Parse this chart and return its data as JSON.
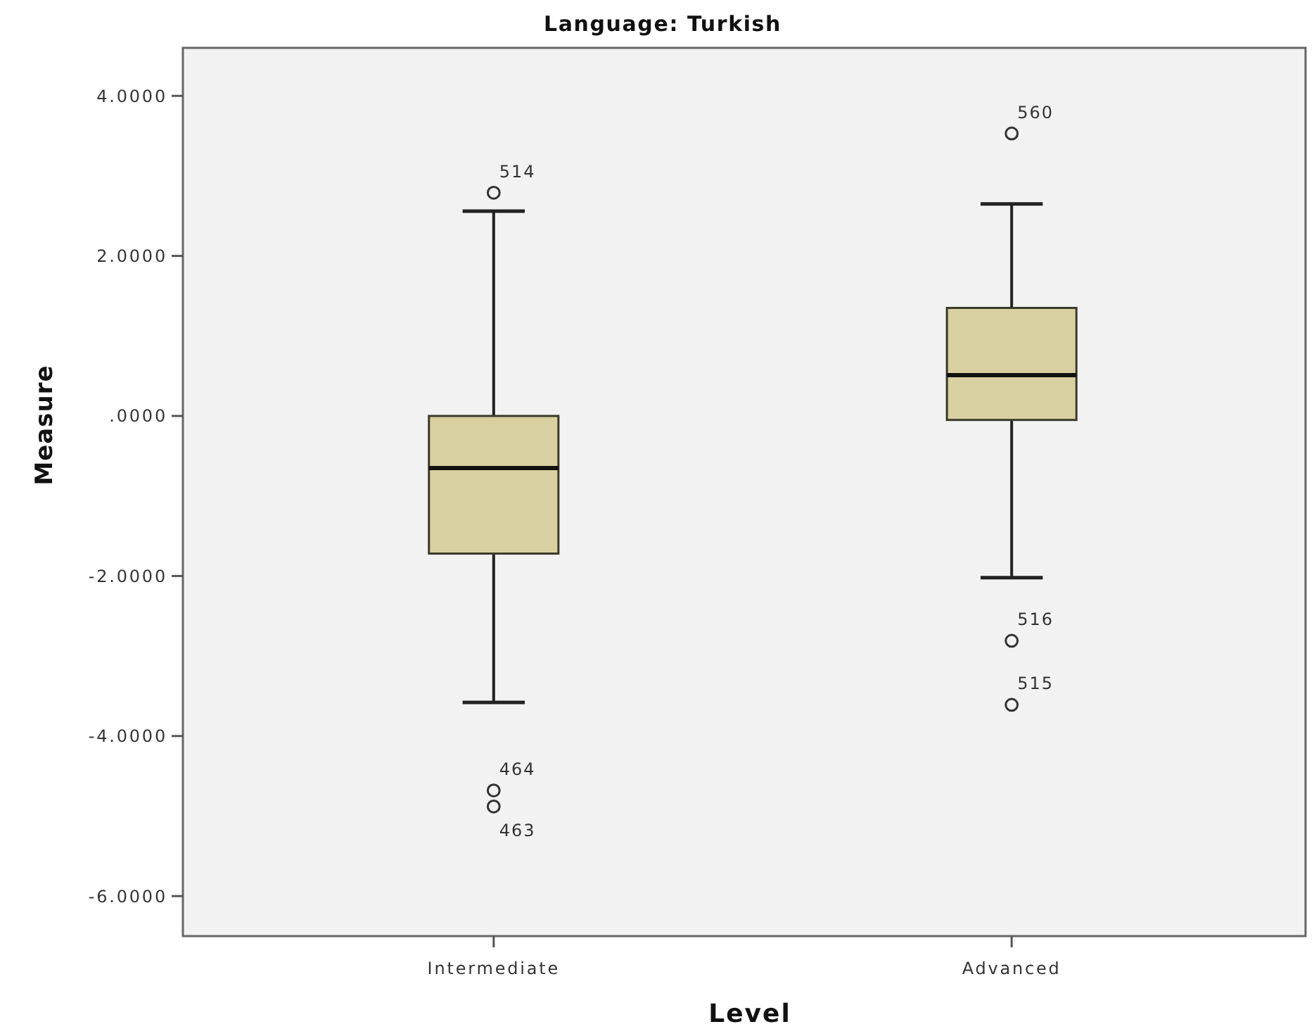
{
  "chart_data": {
    "type": "box",
    "title": "Language: Turkish",
    "xlabel": "Level",
    "ylabel": "Measure",
    "categories": [
      "Intermediate",
      "Advanced"
    ],
    "series": [
      {
        "color": "#d8d0a0",
        "boxes": [
          {
            "low": -3.58,
            "q1": -1.72,
            "median": -0.65,
            "q3": 0.0,
            "high": 2.56,
            "outliers": [
              2.79,
              -4.68,
              -4.88
            ]
          },
          {
            "low": -2.02,
            "q1": -0.05,
            "median": 0.51,
            "q3": 1.35,
            "high": 2.65,
            "outliers": [
              3.53,
              -2.81,
              -3.61
            ]
          }
        ]
      }
    ],
    "ylim": [
      -6.5,
      4.6
    ],
    "yticks": [
      {
        "value": -6,
        "label": "-6.0000"
      },
      {
        "value": -4,
        "label": "-4.0000"
      },
      {
        "value": -2,
        "label": "-2.0000"
      },
      {
        "value": 0,
        "label": ".0000"
      },
      {
        "value": 2,
        "label": "2.0000"
      },
      {
        "value": 4,
        "label": "4.0000"
      }
    ],
    "annotations": [
      "514",
      "464",
      "463",
      "560",
      "516",
      "515"
    ]
  }
}
